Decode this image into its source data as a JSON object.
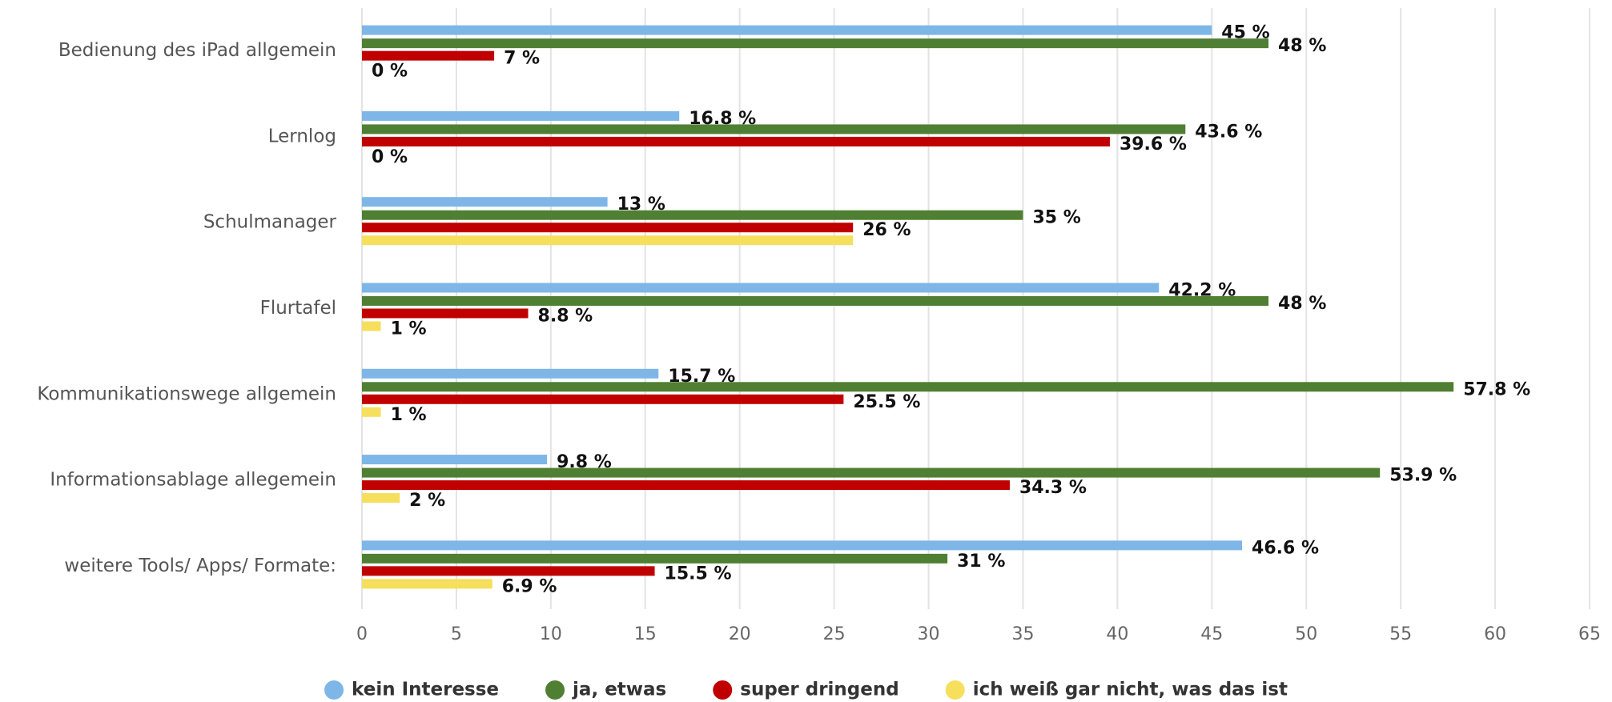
{
  "chart_data": {
    "type": "hbar",
    "categories": [
      "Bedienung des iPad allgemein",
      "Lernlog",
      "Schulmanager",
      "Flurtafel",
      "Kommunikationswege allgemein",
      "Informationsablage allegemein",
      "weitere Tools/ Apps/ Formate:"
    ],
    "series": [
      {
        "name": "kein Interesse",
        "color": "#7eb6e8",
        "values": [
          45,
          16.8,
          13,
          42.2,
          15.7,
          9.8,
          46.6
        ],
        "value_labels": [
          "45 %",
          "16.8 %",
          "13 %",
          "42.2 %",
          "15.7 %",
          "9.8 %",
          "46.6 %"
        ]
      },
      {
        "name": "ja, etwas",
        "color": "#4f7f32",
        "values": [
          48,
          43.6,
          35,
          48,
          57.8,
          53.9,
          31
        ],
        "value_labels": [
          "48 %",
          "43.6 %",
          "35 %",
          "48 %",
          "57.8 %",
          "53.9 %",
          "31 %"
        ]
      },
      {
        "name": "super dringend",
        "color": "#c00000",
        "values": [
          7,
          39.6,
          26,
          8.8,
          25.5,
          34.3,
          15.5
        ],
        "value_labels": [
          "7 %",
          "39.6 %",
          "26 %",
          "8.8 %",
          "25.5 %",
          "34.3 %",
          "15.5 %"
        ]
      },
      {
        "name": "ich weiß gar nicht, was das ist",
        "color": "#f5df5c",
        "values": [
          0,
          0,
          26,
          1,
          1,
          2,
          6.9
        ],
        "value_labels": [
          "0 %",
          "0 %",
          null,
          "1 %",
          "1 %",
          "2 %",
          "6.9 %"
        ]
      }
    ],
    "xlim": [
      0,
      65
    ],
    "xticks": [
      0,
      5,
      10,
      15,
      20,
      25,
      30,
      35,
      40,
      45,
      50,
      55,
      60,
      65
    ],
    "grid": true,
    "legend": "bottom"
  }
}
